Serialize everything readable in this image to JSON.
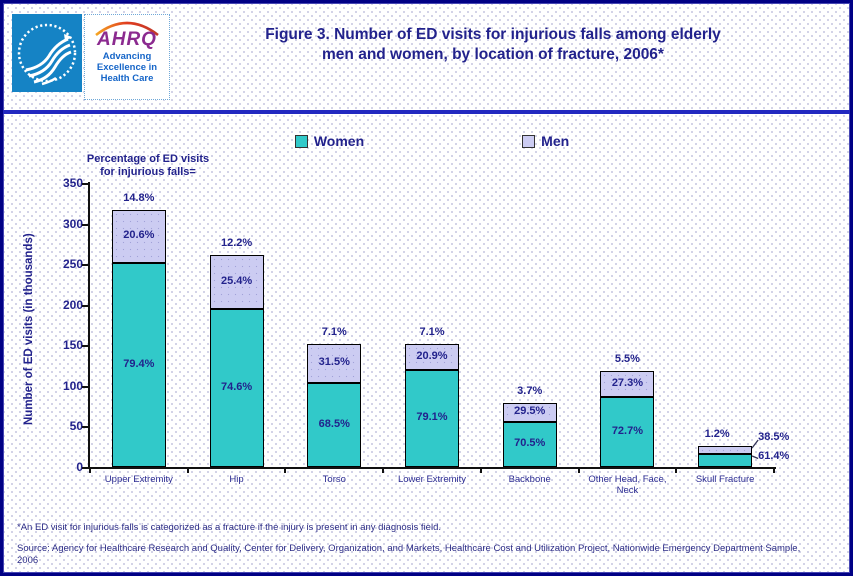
{
  "header": {
    "title_line1": "Figure 3. Number of ED visits for injurious falls among elderly",
    "title_line2": "men and women, by location of fracture, 2006*",
    "ahrq": {
      "word": "AHRQ",
      "tagline_line1": "Advancing",
      "tagline_line2": "Excellence in",
      "tagline_line3": "Health Care"
    }
  },
  "legend": {
    "women_label": "Women",
    "men_label": "Men"
  },
  "annotation": {
    "line1": "Percentage of ED visits",
    "line2": "for injurious falls="
  },
  "footnotes": {
    "note": "*An ED visit for injurious falls is categorized as a fracture if the injury is present in any diagnosis field.",
    "source": "Source: Agency for Healthcare Research and Quality, Center for Delivery, Organization, and Markets, Healthcare Cost and Utilization Project, Nationwide Emergency Department Sample, 2006"
  },
  "colors": {
    "women": "#31c9c9",
    "men": "#ccccf2",
    "navy_text": "#22228c",
    "separator": "#2228c0",
    "hhs_blue": "#1583c5",
    "ahrq_purple": "#8b2a8f",
    "ahrq_blue": "#1565c8"
  },
  "chart_data": {
    "type": "bar",
    "stacked": true,
    "title": "Number of ED visits for injurious falls among elderly men and women, by location of fracture, 2006",
    "xlabel": "",
    "ylabel": "Number of ED visits (in thousands)",
    "ylim": [
      0,
      350
    ],
    "ytick_step": 50,
    "grid": false,
    "legend_position": "top",
    "categories": [
      "Upper Extremity",
      "Hip",
      "Torso",
      "Lower Extremity",
      "Backbone",
      "Other Head, Face, Neck",
      "Skull Fracture"
    ],
    "series": [
      {
        "name": "Women",
        "values": [
          252,
          195,
          104,
          120,
          56,
          86,
          16
        ],
        "pct_labels": [
          "79.4%",
          "74.6%",
          "68.5%",
          "79.1%",
          "70.5%",
          "72.7%",
          "61.4%"
        ]
      },
      {
        "name": "Men",
        "values": [
          65,
          66,
          48,
          32,
          23,
          32,
          10
        ],
        "pct_labels": [
          "20.6%",
          "25.4%",
          "31.5%",
          "20.9%",
          "29.5%",
          "27.3%",
          "38.5%"
        ]
      }
    ],
    "total_pct_labels": [
      "14.8%",
      "12.2%",
      "7.1%",
      "7.1%",
      "3.7%",
      "5.5%",
      "1.2%"
    ]
  }
}
